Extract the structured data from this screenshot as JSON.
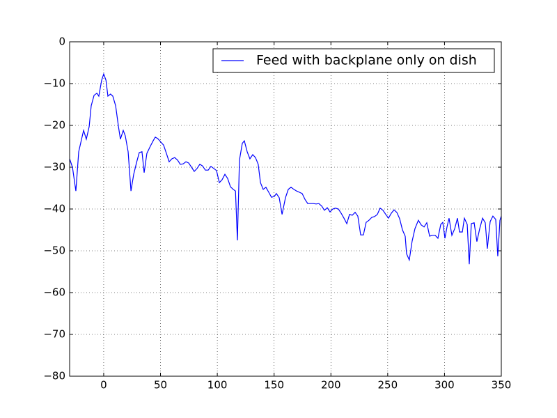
{
  "chart_data": {
    "type": "line",
    "series": [
      {
        "name": "Feed with backplane only on dish",
        "color": "#0000ff",
        "x": [
          -30,
          -27.5,
          -24.5,
          -22,
          -19,
          -17.7,
          -15.3,
          -12.8,
          -11,
          -8.5,
          -6,
          -4.3,
          -1.8,
          0,
          2,
          3.7,
          6,
          8,
          10.5,
          13,
          14.7,
          17.2,
          19,
          21.5,
          24,
          26.4,
          29,
          31.3,
          33.7,
          35.6,
          38,
          41,
          43.5,
          45.4,
          47.8,
          50.3,
          52.7,
          55.2,
          57.6,
          60,
          62.5,
          65,
          67.4,
          70,
          72.4,
          74.8,
          77.3,
          79.7,
          82.2,
          84.6,
          87,
          89.5,
          92,
          94.4,
          96.9,
          99.3,
          101.8,
          104.2,
          106.7,
          109.1,
          111.6,
          114,
          116,
          117.7,
          119.5,
          122,
          123.8,
          126.3,
          128.7,
          131.2,
          133.6,
          136,
          138,
          140.4,
          142.8,
          145.3,
          147.7,
          150.2,
          152,
          154.5,
          157,
          160,
          162.5,
          164.9,
          167.4,
          169.8,
          172.3,
          174.7,
          177.2,
          179.6,
          182,
          184.5,
          187,
          189.4,
          191.9,
          194.3,
          196.8,
          199.2,
          201.7,
          204,
          206.6,
          209,
          211.5,
          214,
          216.4,
          218.8,
          221.3,
          223.7,
          226.2,
          228.6,
          231,
          233.5,
          236,
          238.4,
          240.9,
          243.3,
          245.8,
          248.3,
          250.7,
          253.2,
          255.6,
          258,
          260.5,
          263,
          265.4,
          266.6,
          269,
          271.5,
          274,
          277,
          279.5,
          282,
          284.4,
          286.9,
          289.3,
          291.8,
          294.2,
          296.7,
          298.5,
          300.4,
          302.2,
          304,
          306.5,
          309,
          311.4,
          313.2,
          315.7,
          317.5,
          320,
          321.8,
          323.6,
          326.1,
          328.5,
          331,
          333.5,
          335.9,
          337.7,
          340.2,
          342.6,
          345.1,
          346.9,
          348.8,
          350
        ],
        "values": [
          -28,
          -30,
          -35.7,
          -26.3,
          -22.7,
          -21.2,
          -23.3,
          -20.3,
          -15.3,
          -12.8,
          -12.3,
          -13,
          -9.2,
          -7.7,
          -9.2,
          -13,
          -12.5,
          -13,
          -15.3,
          -20.3,
          -23.3,
          -21.2,
          -22.5,
          -26.3,
          -35.7,
          -31.7,
          -28.8,
          -26.5,
          -26.3,
          -31.3,
          -26.7,
          -25,
          -23.7,
          -22.8,
          -23.2,
          -24,
          -24.7,
          -26.7,
          -28.7,
          -28,
          -27.7,
          -28.3,
          -29.3,
          -29.2,
          -28.7,
          -29,
          -30,
          -31,
          -30.3,
          -29.3,
          -29.7,
          -30.7,
          -30.7,
          -29.8,
          -30.3,
          -30.8,
          -33.7,
          -33,
          -31.7,
          -32.7,
          -34.7,
          -35.3,
          -35.7,
          -47.5,
          -28.3,
          -24.3,
          -23.7,
          -26.3,
          -28,
          -27,
          -27.7,
          -29.3,
          -33.7,
          -35.3,
          -34.8,
          -36,
          -37.2,
          -37,
          -36.3,
          -37.3,
          -41.3,
          -37.3,
          -35.3,
          -34.8,
          -35.3,
          -35.7,
          -36,
          -36.3,
          -37.7,
          -38.7,
          -38.7,
          -38.7,
          -38.8,
          -38.7,
          -39.3,
          -40.3,
          -39.7,
          -40.7,
          -40,
          -39.8,
          -40,
          -41,
          -42.2,
          -43.5,
          -41.3,
          -41.5,
          -40.8,
          -41.7,
          -46.2,
          -46.2,
          -43.2,
          -42.7,
          -42,
          -41.8,
          -41.3,
          -39.8,
          -40.3,
          -41.3,
          -42.2,
          -41,
          -40.2,
          -40.8,
          -42.3,
          -45,
          -46.5,
          -50.7,
          -52.2,
          -47.7,
          -44.7,
          -42.7,
          -43.8,
          -44.3,
          -43.3,
          -46.5,
          -46.3,
          -46.3,
          -47,
          -43.7,
          -43.2,
          -47,
          -44.3,
          -42.2,
          -46.3,
          -44.7,
          -42.2,
          -45.5,
          -45.5,
          -42.2,
          -43.7,
          -53.2,
          -43.5,
          -43.3,
          -47.8,
          -44.7,
          -42.2,
          -43.3,
          -49.5,
          -43,
          -41.7,
          -42.5,
          -51.3,
          -42.7,
          -41.7
        ]
      }
    ],
    "xlim": [
      -30,
      350
    ],
    "xticks": [
      0,
      50,
      100,
      150,
      200,
      250,
      300,
      350
    ],
    "ylim": [
      -80,
      0
    ],
    "yticks": [
      {
        "value": -80,
        "label": "−80"
      },
      {
        "value": -70,
        "label": "−70"
      },
      {
        "value": -60,
        "label": "−60"
      },
      {
        "value": -50,
        "label": "−50"
      },
      {
        "value": -40,
        "label": "−40"
      },
      {
        "value": -30,
        "label": "−30"
      },
      {
        "value": -20,
        "label": "−20"
      },
      {
        "value": -10,
        "label": "−10"
      },
      0
    ],
    "grid": true,
    "legend": "upper-right"
  }
}
